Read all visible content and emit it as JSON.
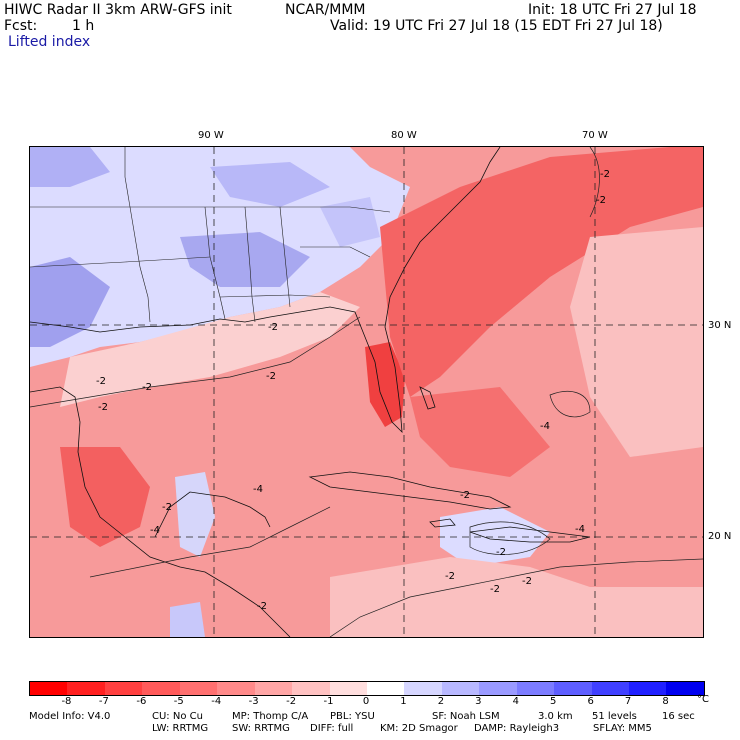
{
  "header": {
    "title": "HIWC Radar II 3km ARW-GFS init",
    "org": "NCAR/MMM",
    "init": "Init: 18 UTC Fri 27 Jul 18",
    "fcst_label": "Fcst:",
    "fcst_value": "1 h",
    "valid": "Valid: 19 UTC Fri 27 Jul 18 (15 EDT Fri 27 Jul 18)",
    "field": "Lifted index"
  },
  "map": {
    "lon_labels": [
      "90 W",
      "80 W",
      "70 W"
    ],
    "lat_labels": [
      "30 N",
      "20 N"
    ],
    "contour_labels": [
      "-2",
      "-2",
      "-2",
      "-2",
      "-2",
      "-2",
      "-2",
      "-2",
      "-4",
      "-4",
      "-2",
      "-4",
      "-2",
      "-4",
      "-2",
      "-2",
      "-2",
      "-2"
    ]
  },
  "colorbar": {
    "levels": [
      "-8",
      "-7",
      "-6",
      "-5",
      "-4",
      "-3",
      "-2",
      "-1",
      "0",
      "1",
      "2",
      "3",
      "4",
      "5",
      "6",
      "7",
      "8"
    ],
    "unit": "°C",
    "colors": [
      "#ff0000",
      "#ff2020",
      "#ff4040",
      "#ff5a5a",
      "#ff7070",
      "#ff8a8a",
      "#ffa6a6",
      "#ffc2c2",
      "#ffdede",
      "#ffffff",
      "#d6d6ff",
      "#b8b8ff",
      "#9a9aff",
      "#7c7cff",
      "#5e5eff",
      "#4040ff",
      "#2020ff",
      "#0000f0"
    ]
  },
  "footer": {
    "line1": [
      "Model Info: V4.0",
      "CU: No Cu",
      "MP: Thomp C/A",
      "PBL: YSU",
      "SF: Noah LSM",
      "3.0 km",
      "51 levels",
      "16 sec"
    ],
    "line2": [
      "LW: RRTMG",
      "SW: RRTMG",
      "DIFF: full",
      "KM: 2D Smagor",
      "DAMP: Rayleigh3",
      "SFLAY: MM5"
    ]
  }
}
